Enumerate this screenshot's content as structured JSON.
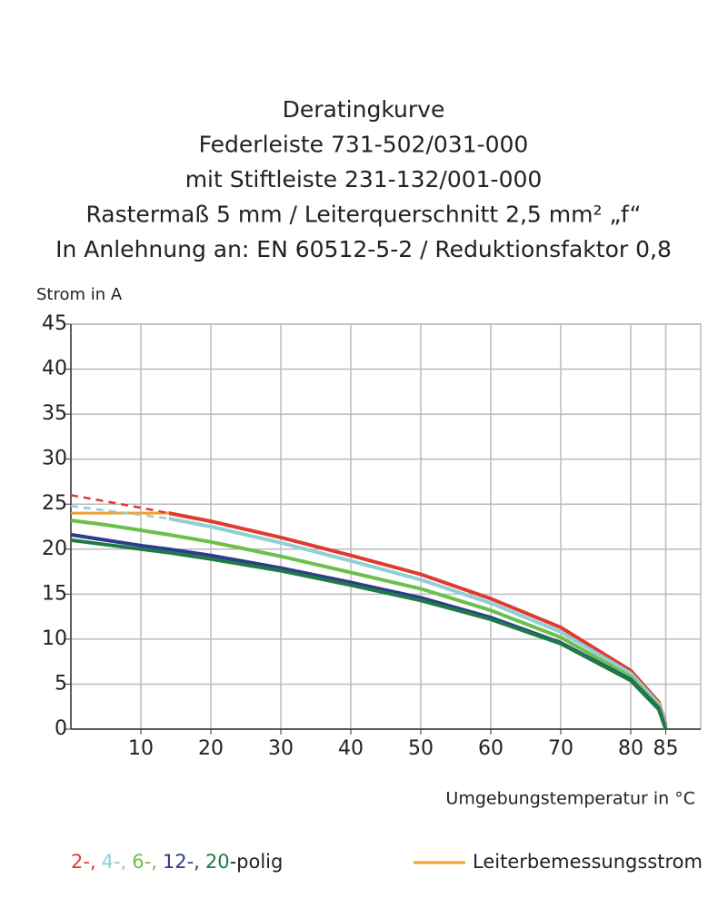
{
  "chart_data": {
    "type": "line",
    "title_lines": [
      "Deratingkurve",
      "Federleiste 731-502/031-000",
      "mit Stiftleiste 231-132/001-000",
      "Rastermaß 5 mm / Leiterquerschnitt 2,5 mm² „f“",
      "In Anlehnung an: EN 60512-5-2 / Reduktionsfaktor 0,8"
    ],
    "y_label": "Strom in A",
    "x_label": "Umgebungstemperatur in °C",
    "xlim": [
      0,
      90
    ],
    "xticks": [
      10,
      20,
      30,
      40,
      50,
      60,
      70,
      80,
      85
    ],
    "ylim": [
      0,
      45
    ],
    "yticks": [
      0,
      5,
      10,
      15,
      20,
      25,
      30,
      35,
      40,
      45
    ],
    "grid": true,
    "x": [
      0,
      5,
      10,
      14,
      20,
      30,
      40,
      50,
      60,
      70,
      80,
      84,
      85
    ],
    "series": [
      {
        "name": "2-,",
        "color": "#e03a2f",
        "dashed_below_x": 14,
        "values": [
          26,
          25.3,
          24.6,
          24,
          23.1,
          21.3,
          19.3,
          17.2,
          14.5,
          11.3,
          6.5,
          3,
          0.5
        ]
      },
      {
        "name": "4-,",
        "color": "#8fcfd6",
        "dashed_below_x": 14,
        "values": [
          24.8,
          24.3,
          23.8,
          23.4,
          22.5,
          20.7,
          18.7,
          16.6,
          14,
          10.8,
          6.2,
          2.8,
          0.3
        ]
      },
      {
        "name": "6-,",
        "color": "#6cbf4a",
        "values": [
          23.2,
          22.7,
          22.1,
          21.6,
          20.8,
          19.2,
          17.4,
          15.6,
          13.2,
          10.2,
          5.8,
          2.5,
          0
        ]
      },
      {
        "name": "12-,",
        "color": "#2e3a8c",
        "values": [
          21.6,
          21,
          20.4,
          20,
          19.3,
          17.9,
          16.3,
          14.6,
          12.4,
          9.6,
          5.5,
          2.3,
          0
        ]
      },
      {
        "name": "20",
        "color": "#1f7a45",
        "values": [
          21,
          20.5,
          20,
          19.6,
          18.9,
          17.6,
          16,
          14.3,
          12.2,
          9.5,
          5.4,
          2.2,
          0
        ]
      }
    ],
    "legend_suffix": "-polig",
    "reference": {
      "name": "Leiterbemessungsstrom",
      "color": "#f0a030",
      "x": [
        0,
        14
      ],
      "values": [
        24,
        24
      ]
    }
  }
}
